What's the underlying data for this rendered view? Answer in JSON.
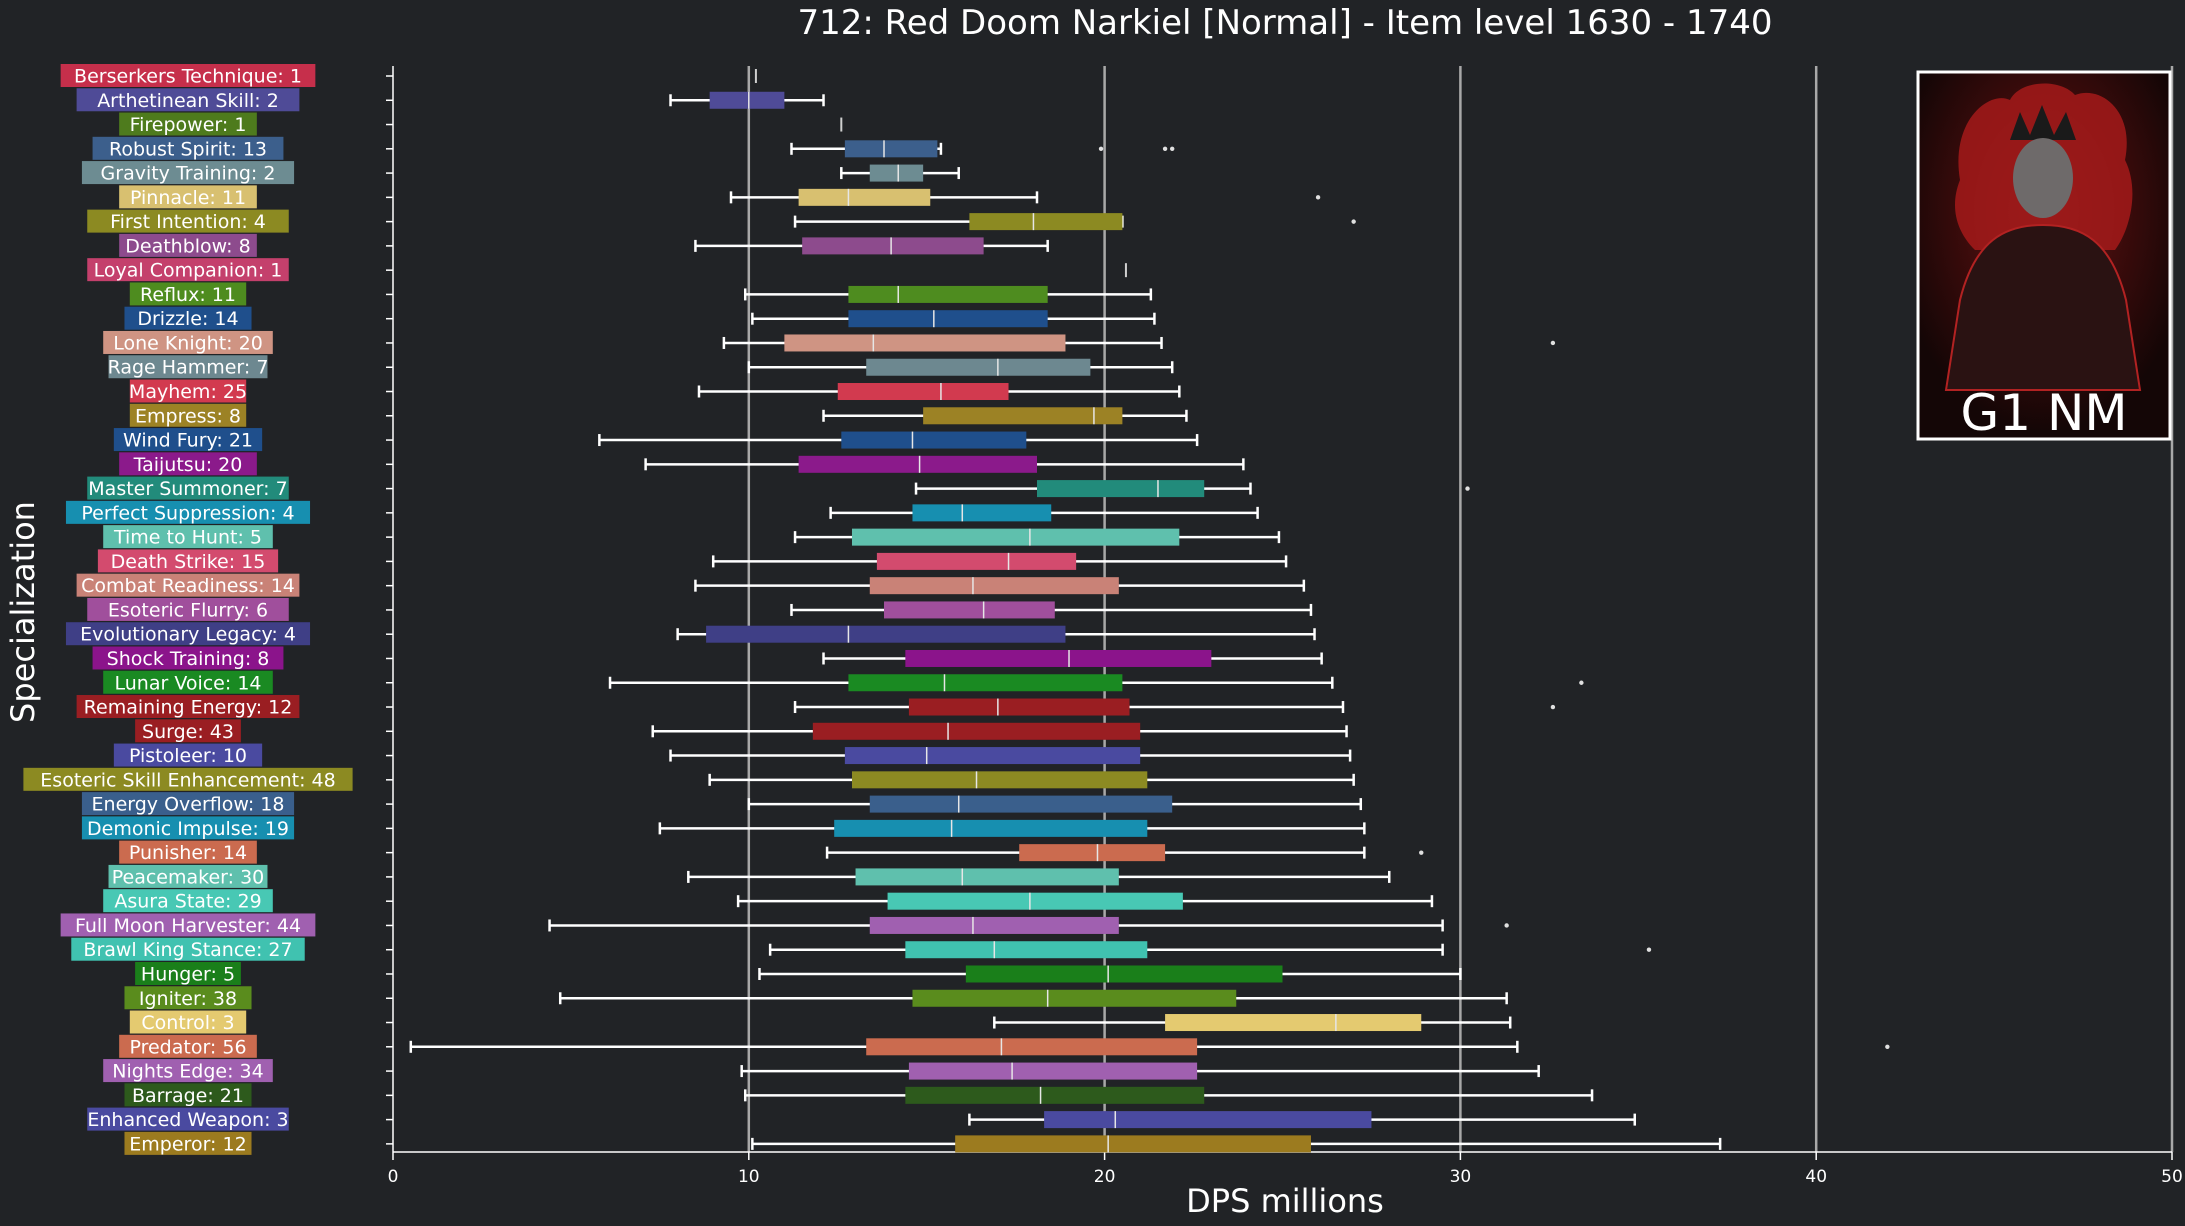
{
  "chart_data": {
    "type": "box",
    "title": "712: Red Doom Narkiel [Normal] - Item level 1630 - 1740",
    "xlabel": "DPS millions",
    "ylabel": "Specialization",
    "xlim": [
      0,
      50
    ],
    "x_ticks": [
      0,
      10,
      20,
      30,
      40,
      50
    ],
    "grid": "vertical major lines at 10, 20, 30, 40, 50",
    "inset_label": "G1 NM",
    "categories": [
      {
        "label": "Berserkers Technique: 1",
        "color": "#c62f4b",
        "whisker_low": 10.2,
        "q1": 10.2,
        "median": 10.2,
        "q3": 10.2,
        "whisker_high": 10.2,
        "outliers": []
      },
      {
        "label": "Arthetinean Skill: 2",
        "color": "#4f4b97",
        "whisker_low": 7.8,
        "q1": 8.9,
        "median": 10.0,
        "q3": 11.0,
        "whisker_high": 12.1,
        "outliers": []
      },
      {
        "label": "Firepower: 1",
        "color": "#4e7b1d",
        "whisker_low": 12.6,
        "q1": 12.6,
        "median": 12.6,
        "q3": 12.6,
        "whisker_high": 12.6,
        "outliers": []
      },
      {
        "label": "Robust Spirit: 13",
        "color": "#3c5f8c",
        "whisker_low": 11.2,
        "q1": 12.7,
        "median": 13.8,
        "q3": 15.3,
        "whisker_high": 15.4,
        "outliers": [
          19.9,
          21.7,
          21.9
        ]
      },
      {
        "label": "Gravity Training: 2",
        "color": "#6d8c92",
        "whisker_low": 12.6,
        "q1": 13.4,
        "median": 14.2,
        "q3": 14.9,
        "whisker_high": 15.9,
        "outliers": []
      },
      {
        "label": "Pinnacle: 11",
        "color": "#d8c070",
        "whisker_low": 9.5,
        "q1": 11.4,
        "median": 12.8,
        "q3": 15.1,
        "whisker_high": 18.1,
        "outliers": [
          26.0
        ]
      },
      {
        "label": "First Intention: 4",
        "color": "#8c8a22",
        "whisker_low": 11.3,
        "q1": 16.2,
        "median": 18.0,
        "q3": 20.5,
        "whisker_high": 20.5,
        "outliers": [
          27.0
        ]
      },
      {
        "label": "Deathblow: 8",
        "color": "#8d4b8d",
        "whisker_low": 8.5,
        "q1": 11.5,
        "median": 14.0,
        "q3": 16.6,
        "whisker_high": 18.4,
        "outliers": []
      },
      {
        "label": "Loyal Companion: 1",
        "color": "#c4406c",
        "whisker_low": 20.6,
        "q1": 20.6,
        "median": 20.6,
        "q3": 20.6,
        "whisker_high": 20.6,
        "outliers": []
      },
      {
        "label": "Reflux: 11",
        "color": "#4e8c1f",
        "whisker_low": 9.9,
        "q1": 12.8,
        "median": 14.2,
        "q3": 18.4,
        "whisker_high": 21.3,
        "outliers": []
      },
      {
        "label": "Drizzle: 14",
        "color": "#1f4f8c",
        "whisker_low": 10.1,
        "q1": 12.8,
        "median": 15.2,
        "q3": 18.4,
        "whisker_high": 21.4,
        "outliers": []
      },
      {
        "label": "Lone Knight: 20",
        "color": "#cf9483",
        "whisker_low": 9.3,
        "q1": 11.0,
        "median": 13.5,
        "q3": 18.9,
        "whisker_high": 21.6,
        "outliers": [
          32.6
        ]
      },
      {
        "label": "Rage Hammer: 7",
        "color": "#6d8890",
        "whisker_low": 10.0,
        "q1": 13.3,
        "median": 17.0,
        "q3": 19.6,
        "whisker_high": 21.9,
        "outliers": []
      },
      {
        "label": "Mayhem: 25",
        "color": "#d23a4f",
        "whisker_low": 8.6,
        "q1": 12.5,
        "median": 15.4,
        "q3": 17.3,
        "whisker_high": 22.1,
        "outliers": []
      },
      {
        "label": "Empress: 8",
        "color": "#9c8225",
        "whisker_low": 12.1,
        "q1": 14.9,
        "median": 19.7,
        "q3": 20.5,
        "whisker_high": 22.3,
        "outliers": []
      },
      {
        "label": "Wind Fury: 21",
        "color": "#1f4f8c",
        "whisker_low": 5.8,
        "q1": 12.6,
        "median": 14.6,
        "q3": 17.8,
        "whisker_high": 22.6,
        "outliers": []
      },
      {
        "label": "Taijutsu: 20",
        "color": "#8b1a8b",
        "whisker_low": 7.1,
        "q1": 11.4,
        "median": 14.8,
        "q3": 18.1,
        "whisker_high": 23.9,
        "outliers": []
      },
      {
        "label": "Master Summoner: 7",
        "color": "#228b7b",
        "whisker_low": 14.7,
        "q1": 18.1,
        "median": 21.5,
        "q3": 22.8,
        "whisker_high": 24.1,
        "outliers": [
          30.2
        ]
      },
      {
        "label": "Perfect Suppression: 4",
        "color": "#178fb0",
        "whisker_low": 12.3,
        "q1": 14.6,
        "median": 16.0,
        "q3": 18.5,
        "whisker_high": 24.3,
        "outliers": []
      },
      {
        "label": "Time to Hunt: 5",
        "color": "#5fc0ad",
        "whisker_low": 11.3,
        "q1": 12.9,
        "median": 17.9,
        "q3": 22.1,
        "whisker_high": 24.9,
        "outliers": []
      },
      {
        "label": "Death Strike: 15",
        "color": "#d34b6e",
        "whisker_low": 9.0,
        "q1": 13.6,
        "median": 17.3,
        "q3": 19.2,
        "whisker_high": 25.1,
        "outliers": []
      },
      {
        "label": "Combat Readiness: 14",
        "color": "#c98277",
        "whisker_low": 8.5,
        "q1": 13.4,
        "median": 16.3,
        "q3": 20.4,
        "whisker_high": 25.6,
        "outliers": []
      },
      {
        "label": "Esoteric Flurry: 6",
        "color": "#a04f9c",
        "whisker_low": 11.2,
        "q1": 13.8,
        "median": 16.6,
        "q3": 18.6,
        "whisker_high": 25.8,
        "outliers": []
      },
      {
        "label": "Evolutionary Legacy: 4",
        "color": "#3f3f86",
        "whisker_low": 8.0,
        "q1": 8.8,
        "median": 12.8,
        "q3": 18.9,
        "whisker_high": 25.9,
        "outliers": []
      },
      {
        "label": "Shock Training: 8",
        "color": "#8b148b",
        "whisker_low": 12.1,
        "q1": 14.4,
        "median": 19.0,
        "q3": 23.0,
        "whisker_high": 26.1,
        "outliers": []
      },
      {
        "label": "Lunar Voice: 14",
        "color": "#1a8a22",
        "whisker_low": 6.1,
        "q1": 12.8,
        "median": 15.5,
        "q3": 20.5,
        "whisker_high": 26.4,
        "outliers": [
          33.4
        ]
      },
      {
        "label": "Remaining Energy: 12",
        "color": "#9a1e22",
        "whisker_low": 11.3,
        "q1": 14.5,
        "median": 17.0,
        "q3": 20.7,
        "whisker_high": 26.7,
        "outliers": [
          32.6
        ]
      },
      {
        "label": "Surge: 43",
        "color": "#9a1e22",
        "whisker_low": 7.3,
        "q1": 11.8,
        "median": 15.6,
        "q3": 21.0,
        "whisker_high": 26.8,
        "outliers": []
      },
      {
        "label": "Pistoleer: 10",
        "color": "#4a4aa0",
        "whisker_low": 7.8,
        "q1": 12.7,
        "median": 15.0,
        "q3": 21.0,
        "whisker_high": 26.9,
        "outliers": []
      },
      {
        "label": "Esoteric Skill Enhancement: 48",
        "color": "#8c8a22",
        "whisker_low": 8.9,
        "q1": 12.9,
        "median": 16.4,
        "q3": 21.2,
        "whisker_high": 27.0,
        "outliers": []
      },
      {
        "label": "Energy Overflow: 18",
        "color": "#3a5f8c",
        "whisker_low": 10.0,
        "q1": 13.4,
        "median": 15.9,
        "q3": 21.9,
        "whisker_high": 27.2,
        "outliers": []
      },
      {
        "label": "Demonic Impulse: 19",
        "color": "#178fb0",
        "whisker_low": 7.5,
        "q1": 12.4,
        "median": 15.7,
        "q3": 21.2,
        "whisker_high": 27.3,
        "outliers": []
      },
      {
        "label": "Punisher: 14",
        "color": "#cb6b4f",
        "whisker_low": 12.2,
        "q1": 17.6,
        "median": 19.8,
        "q3": 21.7,
        "whisker_high": 27.3,
        "outliers": [
          28.9
        ]
      },
      {
        "label": "Peacemaker: 30",
        "color": "#5fc0ad",
        "whisker_low": 8.3,
        "q1": 13.0,
        "median": 16.0,
        "q3": 20.4,
        "whisker_high": 28.0,
        "outliers": []
      },
      {
        "label": "Asura State: 29",
        "color": "#48c8b4",
        "whisker_low": 9.7,
        "q1": 13.9,
        "median": 17.9,
        "q3": 22.2,
        "whisker_high": 29.2,
        "outliers": []
      },
      {
        "label": "Full Moon Harvester: 44",
        "color": "#a060b0",
        "whisker_low": 4.4,
        "q1": 13.4,
        "median": 16.3,
        "q3": 20.4,
        "whisker_high": 29.5,
        "outliers": [
          31.3
        ]
      },
      {
        "label": "Brawl King Stance: 27",
        "color": "#40c2b0",
        "whisker_low": 10.6,
        "q1": 14.4,
        "median": 16.9,
        "q3": 21.2,
        "whisker_high": 29.5,
        "outliers": [
          35.3
        ]
      },
      {
        "label": "Hunger: 5",
        "color": "#1a7f1a",
        "whisker_low": 10.3,
        "q1": 16.1,
        "median": 20.1,
        "q3": 25.0,
        "whisker_high": 30.0,
        "outliers": []
      },
      {
        "label": "Igniter: 38",
        "color": "#5a8c1d",
        "whisker_low": 4.7,
        "q1": 14.6,
        "median": 18.4,
        "q3": 23.7,
        "whisker_high": 31.3,
        "outliers": []
      },
      {
        "label": "Control: 3",
        "color": "#e4ca70",
        "whisker_low": 16.9,
        "q1": 21.7,
        "median": 26.5,
        "q3": 28.9,
        "whisker_high": 31.4,
        "outliers": []
      },
      {
        "label": "Predator: 56",
        "color": "#cb6b4f",
        "whisker_low": 0.5,
        "q1": 13.3,
        "median": 17.1,
        "q3": 22.6,
        "whisker_high": 31.6,
        "outliers": [
          42.0
        ]
      },
      {
        "label": "Nights Edge: 34",
        "color": "#a060b0",
        "whisker_low": 9.8,
        "q1": 14.5,
        "median": 17.4,
        "q3": 22.6,
        "whisker_high": 32.2,
        "outliers": []
      },
      {
        "label": "Barrage: 21",
        "color": "#2d5a1c",
        "whisker_low": 9.9,
        "q1": 14.4,
        "median": 18.2,
        "q3": 22.8,
        "whisker_high": 33.7,
        "outliers": []
      },
      {
        "label": "Enhanced Weapon: 3",
        "color": "#4a4aa0",
        "whisker_low": 16.2,
        "q1": 18.3,
        "median": 20.3,
        "q3": 27.5,
        "whisker_high": 34.9,
        "outliers": []
      },
      {
        "label": "Emperor: 12",
        "color": "#9c7b1f",
        "whisker_low": 10.1,
        "q1": 15.8,
        "median": 20.1,
        "q3": 25.8,
        "whisker_high": 37.3,
        "outliers": []
      }
    ]
  }
}
